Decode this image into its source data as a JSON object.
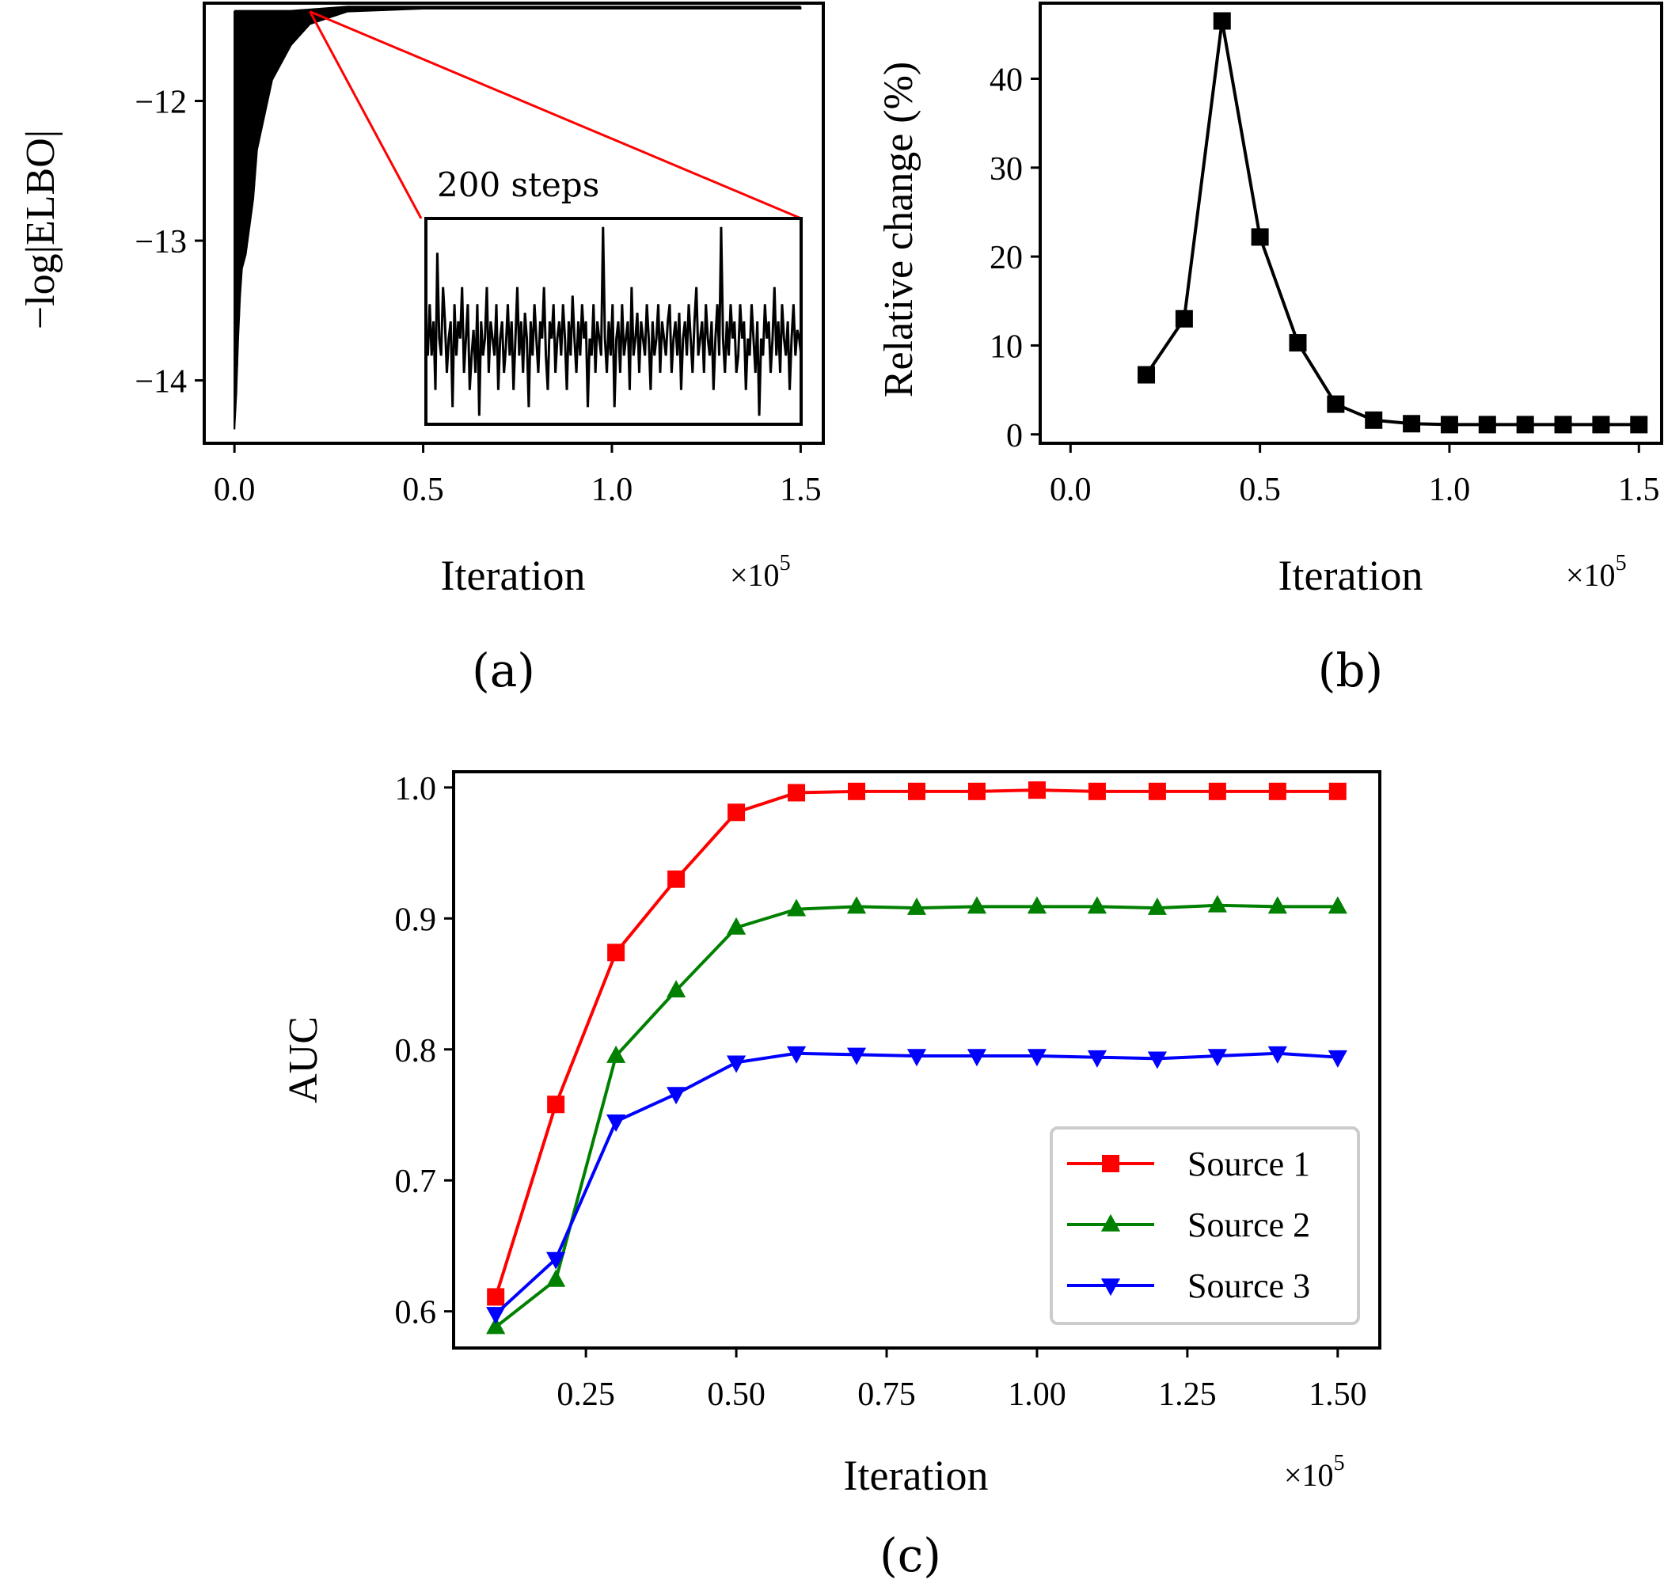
{
  "chart_data": [
    {
      "panel": "(a)",
      "type": "line",
      "ylabel": "−log|ELBO|",
      "xlabel": "Iteration",
      "x_multiplier": "×10^5",
      "xlim": [
        -0.08,
        1.56
      ],
      "ylim": [
        -14.45,
        -11.3
      ],
      "xticks": [
        "0.0",
        "0.5",
        "1.0",
        "1.5"
      ],
      "xtick_values": [
        0.0,
        0.5,
        1.0,
        1.5
      ],
      "yticks": [
        "−12",
        "−13",
        "−14"
      ],
      "ytick_values": [
        -12,
        -13,
        -14
      ],
      "series": [
        {
          "color": "#000000",
          "x": [
            0.0,
            0.005,
            0.01,
            0.015,
            0.02,
            0.03,
            0.04,
            0.05,
            0.06,
            0.08,
            0.1,
            0.15,
            0.2,
            0.3,
            0.5,
            0.75,
            1.0,
            1.25,
            1.5
          ],
          "y_upper": [
            -11.36,
            -11.36,
            -11.36,
            -11.36,
            -11.36,
            -11.36,
            -11.36,
            -11.36,
            -11.36,
            -11.36,
            -11.36,
            -11.36,
            -11.35,
            -11.33,
            -11.33,
            -11.33,
            -11.33,
            -11.33,
            -11.33
          ],
          "y_lower": [
            -14.35,
            -14.1,
            -13.7,
            -13.4,
            -13.2,
            -13.1,
            -12.9,
            -12.7,
            -12.35,
            -12.1,
            -11.85,
            -11.6,
            -11.45,
            -11.36,
            -11.34,
            -11.34,
            -11.34,
            -11.34,
            -11.34
          ]
        }
      ],
      "inset": {
        "label": "200 steps",
        "zoom_from_x": 0.2,
        "zoom_from_y": -11.36,
        "values": [
          -13.55,
          -13.6,
          -13.3,
          -13.6,
          -13.4,
          -13.8,
          -13.0,
          -13.5,
          -13.6,
          -13.2,
          -13.4,
          -13.7,
          -13.5,
          -13.4,
          -13.9,
          -13.3,
          -13.6,
          -13.4,
          -13.5,
          -13.2,
          -13.7,
          -13.5,
          -13.3,
          -13.8,
          -13.6,
          -13.45,
          -13.7,
          -13.3,
          -13.95,
          -13.4,
          -13.6,
          -13.5,
          -13.2,
          -13.7,
          -13.4,
          -13.5,
          -13.6,
          -13.3,
          -13.8,
          -13.5,
          -13.4,
          -13.7,
          -13.55,
          -13.3,
          -13.6,
          -13.4,
          -13.8,
          -13.5,
          -13.2,
          -13.6,
          -13.4,
          -13.7,
          -13.35,
          -13.5,
          -13.9,
          -13.4,
          -13.6,
          -13.3,
          -13.5,
          -13.7,
          -13.4,
          -13.5,
          -13.2,
          -13.6,
          -13.8,
          -13.4,
          -13.5,
          -13.3,
          -13.7,
          -13.5,
          -13.4,
          -13.6,
          -13.3,
          -13.5,
          -13.8,
          -13.4,
          -13.6,
          -13.25,
          -13.5,
          -13.7,
          -13.4,
          -13.6,
          -13.3,
          -13.5,
          -13.4,
          -13.9,
          -13.5,
          -13.6,
          -13.3,
          -13.7,
          -13.4,
          -13.5,
          -13.6,
          -12.85,
          -13.5,
          -13.7,
          -13.4,
          -13.6,
          -13.3,
          -13.9,
          -13.5,
          -13.4,
          -13.7,
          -13.3,
          -13.6,
          -13.5,
          -13.4,
          -13.8,
          -13.2,
          -13.6,
          -13.5,
          -13.35,
          -13.7,
          -13.4,
          -13.5,
          -13.6,
          -13.3,
          -13.5,
          -13.8,
          -13.4,
          -13.6,
          -13.5,
          -13.3,
          -13.7,
          -13.4,
          -13.5,
          -13.6,
          -13.4,
          -13.3,
          -13.7,
          -13.5,
          -13.4,
          -13.6,
          -13.35,
          -13.8,
          -13.5,
          -13.4,
          -13.6,
          -13.3,
          -13.5,
          -13.7,
          -13.4,
          -13.2,
          -13.6,
          -13.5,
          -13.4,
          -13.7,
          -13.3,
          -13.5,
          -13.6,
          -13.4,
          -13.8,
          -13.5,
          -13.3,
          -13.6,
          -12.85,
          -13.5,
          -13.7,
          -13.4,
          -13.6,
          -13.3,
          -13.5,
          -13.4,
          -13.7,
          -13.6,
          -13.3,
          -13.5,
          -13.4,
          -13.8,
          -13.5,
          -13.6,
          -13.3,
          -13.5,
          -13.7,
          -13.4,
          -13.95,
          -13.5,
          -13.6,
          -13.3,
          -13.5,
          -13.4,
          -13.7,
          -13.5,
          -13.2,
          -13.6,
          -13.4,
          -13.7,
          -13.3,
          -13.5,
          -13.6,
          -13.4,
          -13.8,
          -13.5,
          -13.3,
          -13.6,
          -13.45,
          -13.5,
          -13.6
        ]
      }
    },
    {
      "panel": "(b)",
      "type": "line",
      "ylabel": "Relative change (%)",
      "xlabel": "Iteration",
      "x_multiplier": "×10^5",
      "xlim": [
        -0.08,
        1.56
      ],
      "ylim": [
        -1,
        48.5
      ],
      "xticks": [
        "0.0",
        "0.5",
        "1.0",
        "1.5"
      ],
      "xtick_values": [
        0.0,
        0.5,
        1.0,
        1.5
      ],
      "yticks": [
        "0",
        "10",
        "20",
        "30",
        "40"
      ],
      "ytick_values": [
        0,
        10,
        20,
        30,
        40
      ],
      "series": [
        {
          "color": "#000000",
          "marker": "square",
          "x": [
            0.2,
            0.3,
            0.4,
            0.5,
            0.6,
            0.7,
            0.8,
            0.9,
            1.0,
            1.1,
            1.2,
            1.3,
            1.4,
            1.5
          ],
          "y": [
            6.7,
            13.0,
            46.5,
            22.2,
            10.3,
            3.4,
            1.6,
            1.2,
            1.1,
            1.1,
            1.1,
            1.1,
            1.1,
            1.1
          ]
        }
      ]
    },
    {
      "panel": "(c)",
      "type": "line",
      "ylabel": "AUC",
      "xlabel": "Iteration",
      "x_multiplier": "×10^5",
      "xlim": [
        0.03,
        1.57
      ],
      "ylim": [
        0.572,
        1.012
      ],
      "xticks": [
        "0.25",
        "0.50",
        "0.75",
        "1.00",
        "1.25",
        "1.50"
      ],
      "xtick_values": [
        0.25,
        0.5,
        0.75,
        1.0,
        1.25,
        1.5
      ],
      "yticks": [
        "0.6",
        "0.7",
        "0.8",
        "0.9",
        "1.0"
      ],
      "ytick_values": [
        0.6,
        0.7,
        0.8,
        0.9,
        1.0
      ],
      "legend_position": "lower-right",
      "x": [
        0.1,
        0.2,
        0.3,
        0.4,
        0.5,
        0.6,
        0.7,
        0.8,
        0.9,
        1.0,
        1.1,
        1.2,
        1.3,
        1.4,
        1.5
      ],
      "series": [
        {
          "name": "Source 1",
          "color": "#ff0000",
          "marker": "square",
          "values": [
            0.611,
            0.758,
            0.874,
            0.93,
            0.981,
            0.996,
            0.997,
            0.997,
            0.997,
            0.998,
            0.997,
            0.997,
            0.997,
            0.997,
            0.997
          ]
        },
        {
          "name": "Source 2",
          "color": "#008000",
          "marker": "triangle-up",
          "values": [
            0.588,
            0.624,
            0.795,
            0.845,
            0.893,
            0.907,
            0.909,
            0.908,
            0.909,
            0.909,
            0.909,
            0.908,
            0.91,
            0.909,
            0.909
          ]
        },
        {
          "name": "Source 3",
          "color": "#0000ff",
          "marker": "triangle-down",
          "values": [
            0.598,
            0.64,
            0.745,
            0.766,
            0.79,
            0.797,
            0.796,
            0.795,
            0.795,
            0.795,
            0.794,
            0.793,
            0.795,
            0.797,
            0.794
          ]
        }
      ]
    }
  ]
}
